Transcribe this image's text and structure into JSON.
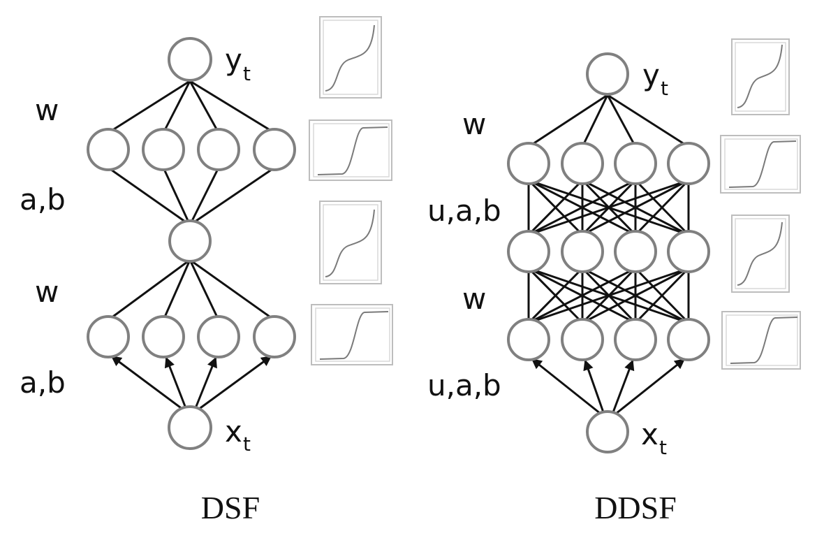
{
  "panels": [
    {
      "caption": "DSF",
      "output_label": "y",
      "output_sub": "t",
      "input_label": "x",
      "input_sub": "t",
      "layer_labels": [
        "w",
        "a,b",
        "w",
        "a,b"
      ],
      "activation_icons": [
        "inverse-sigmoid-curve-icon",
        "sigmoid-curve-icon",
        "inverse-sigmoid-curve-icon",
        "sigmoid-curve-icon"
      ]
    },
    {
      "caption": "DDSF",
      "output_label": "y",
      "output_sub": "t",
      "input_label": "x",
      "input_sub": "t",
      "layer_labels": [
        "w",
        "u,a,b",
        "w",
        "u,a,b"
      ],
      "activation_icons": [
        "inverse-sigmoid-curve-icon",
        "sigmoid-curve-icon",
        "inverse-sigmoid-curve-icon",
        "sigmoid-curve-icon"
      ]
    }
  ],
  "colors": {
    "node_stroke": "#808080",
    "edge": "#111111",
    "thumb_curve": "#7a7a7a"
  }
}
